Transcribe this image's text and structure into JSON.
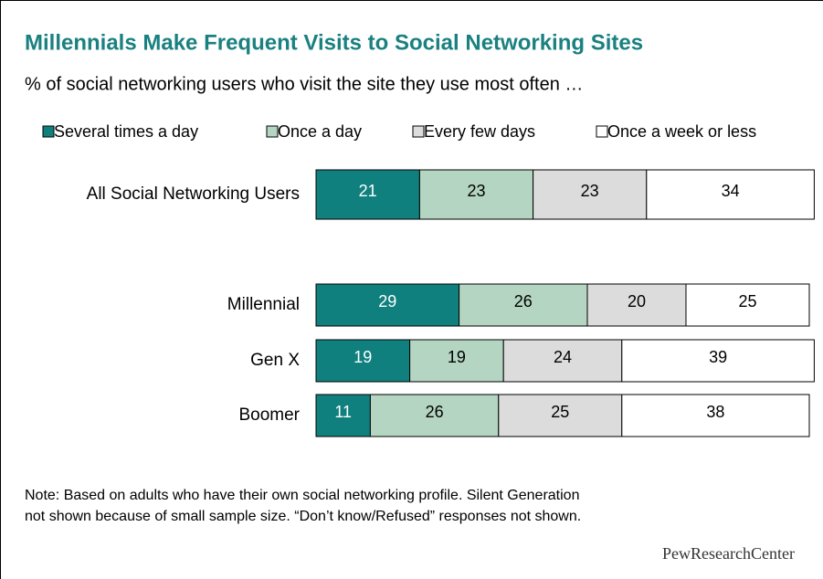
{
  "chart_data": {
    "type": "stacked-bar",
    "title": "Millennials Make Frequent Visits to Social Networking Sites",
    "subtitle": "% of social networking users who visit the site they use most often …",
    "categories": [
      "All Social Networking Users",
      "Millennial",
      "Gen X",
      "Boomer"
    ],
    "series": [
      {
        "name": "Several times a day",
        "color": "#10807e",
        "values": [
          21,
          29,
          19,
          11
        ]
      },
      {
        "name": "Once a day",
        "color": "#b4d5c1",
        "values": [
          23,
          26,
          19,
          26
        ]
      },
      {
        "name": "Every few days",
        "color": "#dcdcdc",
        "values": [
          23,
          20,
          24,
          25
        ]
      },
      {
        "name": "Once a week or less",
        "color": "#ffffff",
        "values": [
          34,
          25,
          39,
          38
        ]
      }
    ],
    "note": [
      "Note: Based on adults who have their own social networking profile. Silent Generation",
      "not shown because of small sample size. “Don’t know/Refused” responses not shown."
    ],
    "source": "PewResearchCenter"
  }
}
